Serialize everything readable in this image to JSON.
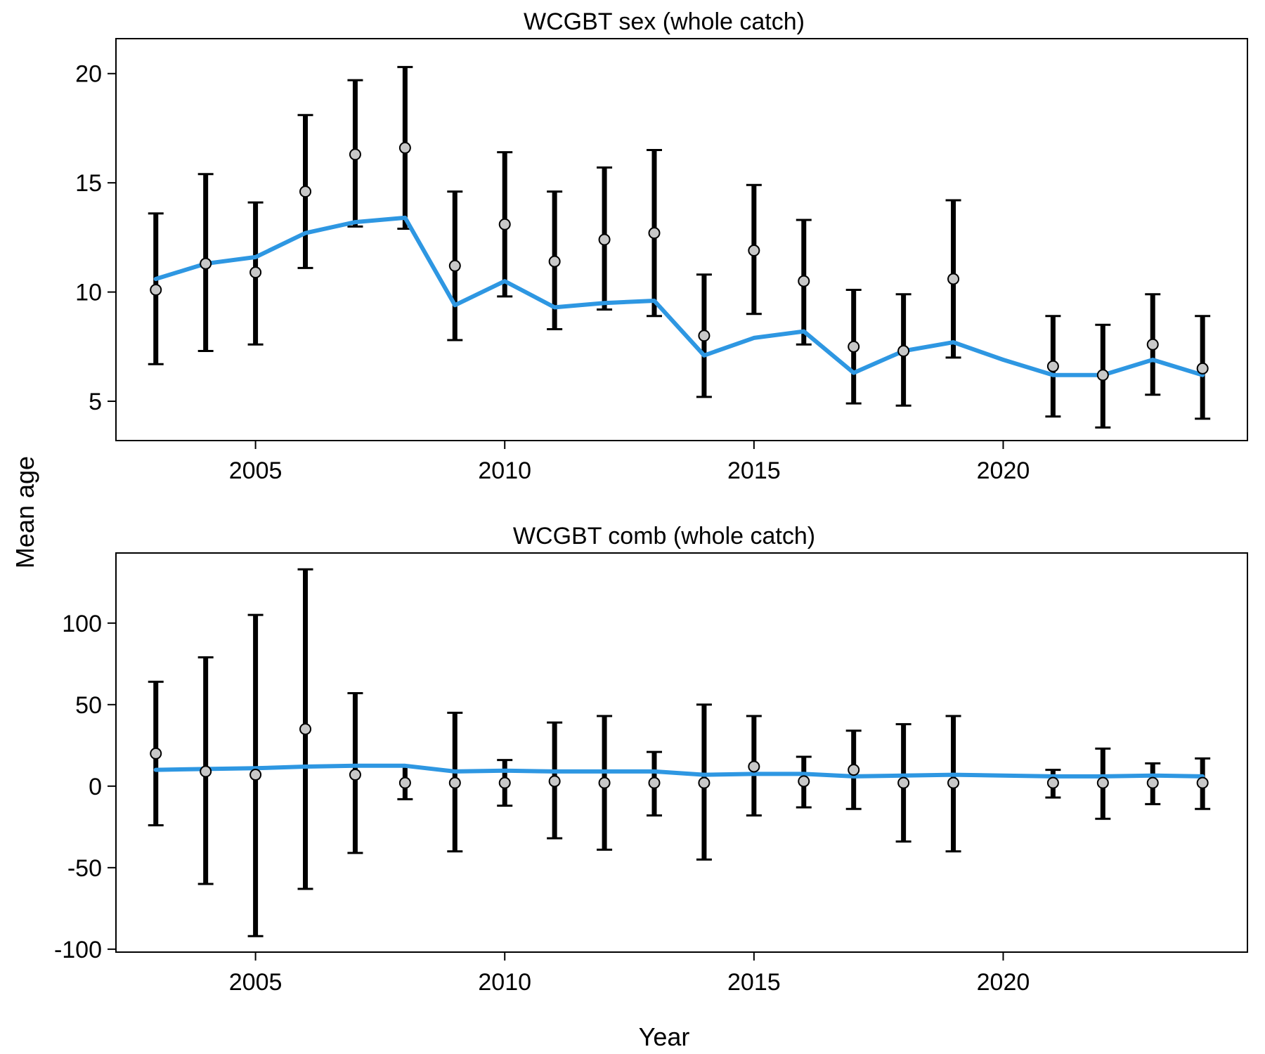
{
  "figure": {
    "xlabel": "Year",
    "ylabel": "Mean age"
  },
  "chart_data": [
    {
      "type": "line",
      "title": "WCGBT sex (whole catch)",
      "xlabel": "",
      "ylabel": "",
      "xlim": [
        2002.2,
        2024.9
      ],
      "ylim": [
        3.2,
        21.6
      ],
      "x_ticks": [
        2005,
        2010,
        2015,
        2020
      ],
      "y_ticks": [
        5,
        10,
        15,
        20
      ],
      "grid": false,
      "series": [
        {
          "kind": "observed",
          "marker": "circle",
          "colors": {
            "fill": "#c8c8c8",
            "stroke": "#000000",
            "errorbar": "#000000"
          },
          "points": [
            {
              "x": 2003,
              "y": 10.1,
              "lo": 6.7,
              "hi": 13.6
            },
            {
              "x": 2004,
              "y": 11.3,
              "lo": 7.3,
              "hi": 15.4
            },
            {
              "x": 2005,
              "y": 10.9,
              "lo": 7.6,
              "hi": 14.1
            },
            {
              "x": 2006,
              "y": 14.6,
              "lo": 11.1,
              "hi": 18.1
            },
            {
              "x": 2007,
              "y": 16.3,
              "lo": 13.0,
              "hi": 19.7
            },
            {
              "x": 2008,
              "y": 16.6,
              "lo": 12.9,
              "hi": 20.3
            },
            {
              "x": 2009,
              "y": 11.2,
              "lo": 7.8,
              "hi": 14.6
            },
            {
              "x": 2010,
              "y": 13.1,
              "lo": 9.8,
              "hi": 16.4
            },
            {
              "x": 2011,
              "y": 11.4,
              "lo": 8.3,
              "hi": 14.6
            },
            {
              "x": 2012,
              "y": 12.4,
              "lo": 9.2,
              "hi": 15.7
            },
            {
              "x": 2013,
              "y": 12.7,
              "lo": 8.9,
              "hi": 16.5
            },
            {
              "x": 2014,
              "y": 8.0,
              "lo": 5.2,
              "hi": 10.8
            },
            {
              "x": 2015,
              "y": 11.9,
              "lo": 9.0,
              "hi": 14.9
            },
            {
              "x": 2016,
              "y": 10.5,
              "lo": 7.6,
              "hi": 13.3
            },
            {
              "x": 2017,
              "y": 7.5,
              "lo": 4.9,
              "hi": 10.1
            },
            {
              "x": 2018,
              "y": 7.3,
              "lo": 4.8,
              "hi": 9.9
            },
            {
              "x": 2019,
              "y": 10.6,
              "lo": 7.0,
              "hi": 14.2
            },
            {
              "x": 2021,
              "y": 6.6,
              "lo": 4.3,
              "hi": 8.9
            },
            {
              "x": 2022,
              "y": 6.2,
              "lo": 3.8,
              "hi": 8.5
            },
            {
              "x": 2023,
              "y": 7.6,
              "lo": 5.3,
              "hi": 9.9
            },
            {
              "x": 2024,
              "y": 6.5,
              "lo": 4.2,
              "hi": 8.9
            }
          ]
        },
        {
          "kind": "expected",
          "color": "#2e97e2",
          "x": [
            2003,
            2004,
            2005,
            2006,
            2007,
            2008,
            2009,
            2010,
            2011,
            2012,
            2013,
            2014,
            2015,
            2016,
            2017,
            2018,
            2019,
            2020,
            2021,
            2022,
            2023,
            2024
          ],
          "y": [
            10.6,
            11.3,
            11.6,
            12.7,
            13.2,
            13.4,
            9.4,
            10.5,
            9.3,
            9.5,
            9.6,
            7.1,
            7.9,
            8.2,
            6.3,
            7.3,
            7.7,
            6.9,
            6.2,
            6.2,
            6.9,
            6.2
          ]
        }
      ]
    },
    {
      "type": "line",
      "title": "WCGBT comb (whole catch)",
      "xlabel": "",
      "ylabel": "",
      "xlim": [
        2002.2,
        2024.9
      ],
      "ylim": [
        -101.8,
        143.0
      ],
      "x_ticks": [
        2005,
        2010,
        2015,
        2020
      ],
      "y_ticks": [
        -100,
        -50,
        0,
        50,
        100
      ],
      "grid": false,
      "series": [
        {
          "kind": "observed",
          "marker": "circle",
          "colors": {
            "fill": "#c8c8c8",
            "stroke": "#000000",
            "errorbar": "#000000"
          },
          "points": [
            {
              "x": 2003,
              "y": 20,
              "lo": -24,
              "hi": 64
            },
            {
              "x": 2004,
              "y": 9,
              "lo": -60,
              "hi": 79
            },
            {
              "x": 2005,
              "y": 7,
              "lo": -92,
              "hi": 105
            },
            {
              "x": 2006,
              "y": 35,
              "lo": -63,
              "hi": 133
            },
            {
              "x": 2007,
              "y": 7,
              "lo": -41,
              "hi": 57
            },
            {
              "x": 2008,
              "y": 2,
              "lo": -8,
              "hi": 12
            },
            {
              "x": 2009,
              "y": 2,
              "lo": -40,
              "hi": 45
            },
            {
              "x": 2010,
              "y": 2,
              "lo": -12,
              "hi": 16
            },
            {
              "x": 2011,
              "y": 3,
              "lo": -32,
              "hi": 39
            },
            {
              "x": 2012,
              "y": 2,
              "lo": -39,
              "hi": 43
            },
            {
              "x": 2013,
              "y": 2,
              "lo": -18,
              "hi": 21
            },
            {
              "x": 2014,
              "y": 2,
              "lo": -45,
              "hi": 50
            },
            {
              "x": 2015,
              "y": 12,
              "lo": -18,
              "hi": 43
            },
            {
              "x": 2016,
              "y": 3,
              "lo": -13,
              "hi": 18
            },
            {
              "x": 2017,
              "y": 10,
              "lo": -14,
              "hi": 34
            },
            {
              "x": 2018,
              "y": 2,
              "lo": -34,
              "hi": 38
            },
            {
              "x": 2019,
              "y": 2,
              "lo": -40,
              "hi": 43
            },
            {
              "x": 2021,
              "y": 2,
              "lo": -7,
              "hi": 10
            },
            {
              "x": 2022,
              "y": 2,
              "lo": -20,
              "hi": 23
            },
            {
              "x": 2023,
              "y": 2,
              "lo": -11,
              "hi": 14
            },
            {
              "x": 2024,
              "y": 2,
              "lo": -14,
              "hi": 17
            }
          ]
        },
        {
          "kind": "expected",
          "color": "#2e97e2",
          "x": [
            2003,
            2004,
            2005,
            2006,
            2007,
            2008,
            2009,
            2010,
            2011,
            2012,
            2013,
            2014,
            2015,
            2016,
            2017,
            2018,
            2019,
            2020,
            2021,
            2022,
            2023,
            2024
          ],
          "y": [
            10,
            10.5,
            11,
            12,
            12.5,
            12.5,
            9,
            9.5,
            9,
            9,
            9,
            7,
            7.5,
            7.5,
            6,
            6.5,
            7,
            6.5,
            6,
            6,
            6.5,
            6
          ]
        }
      ]
    }
  ]
}
